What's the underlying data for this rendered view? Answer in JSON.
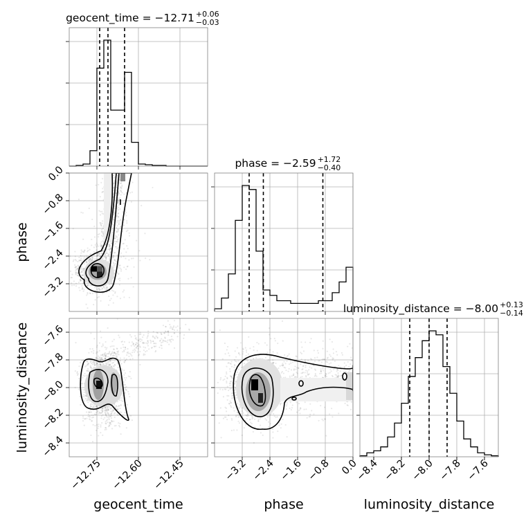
{
  "chart_data": [
    {
      "type": "histogram",
      "panel": "marginal",
      "variable": "geocent_time",
      "title_main": "geocent_time = −12.71",
      "title_sup": "+0.06",
      "title_sub": "−0.03",
      "xlim": [
        -12.85,
        -12.35
      ],
      "quantiles": [
        -12.74,
        -12.71,
        -12.65
      ],
      "bins_x": [
        -12.85,
        -12.825,
        -12.8,
        -12.775,
        -12.75,
        -12.725,
        -12.7,
        -12.675,
        -12.65,
        -12.625,
        -12.6,
        -12.575,
        -12.55,
        -12.525,
        -12.5,
        -12.475,
        -12.45,
        -12.425,
        -12.4,
        -12.375,
        -12.35
      ],
      "counts": [
        0,
        1,
        3,
        22,
        140,
        180,
        80,
        80,
        134,
        34,
        3,
        2,
        1,
        1,
        0,
        0,
        0,
        0,
        0,
        0
      ],
      "ymax": 180,
      "grid": true
    },
    {
      "type": "histogram",
      "panel": "marginal",
      "variable": "phase",
      "title_main": "phase = −2.59",
      "title_sup": "+1.72",
      "title_sub": "−0.40",
      "xlim": [
        -4.0,
        0.0
      ],
      "quantiles": [
        -3.0,
        -2.59,
        -0.87
      ],
      "bins_x": [
        -4.0,
        -3.8,
        -3.6,
        -3.4,
        -3.2,
        -3.0,
        -2.8,
        -2.6,
        -2.4,
        -2.2,
        -2.0,
        -1.8,
        -1.6,
        -1.4,
        -1.2,
        -1.0,
        -0.8,
        -0.6,
        -0.4,
        -0.2,
        0.0
      ],
      "counts": [
        2,
        10,
        28,
        68,
        94,
        91,
        45,
        16,
        12,
        8,
        8,
        6,
        6,
        6,
        6,
        8,
        8,
        14,
        22,
        33
      ],
      "ymax": 94,
      "grid": true
    },
    {
      "type": "histogram",
      "panel": "marginal",
      "variable": "luminosity_distance",
      "title_main": "luminosity_distance = −8.00",
      "title_sup": "+0.13",
      "title_sub": "−0.14",
      "xlim": [
        -8.5,
        -7.5
      ],
      "quantiles": [
        -8.14,
        -8.0,
        -7.87
      ],
      "bins_x": [
        -8.5,
        -8.45,
        -8.4,
        -8.35,
        -8.3,
        -8.25,
        -8.2,
        -8.15,
        -8.1,
        -8.05,
        -8.0,
        -7.95,
        -7.9,
        -7.85,
        -7.8,
        -7.75,
        -7.7,
        -7.65,
        -7.6,
        -7.55,
        -7.5
      ],
      "counts": [
        1,
        4,
        6,
        10,
        20,
        34,
        54,
        81,
        100,
        117,
        127,
        123,
        91,
        64,
        36,
        18,
        10,
        4,
        2,
        1
      ],
      "ymax": 127,
      "grid": true
    },
    {
      "type": "scatter",
      "panel": "2d",
      "x_variable": "geocent_time",
      "y_variable": "phase",
      "xlim": [
        -12.85,
        -12.35
      ],
      "ylim": [
        -4.0,
        0.0
      ],
      "density_peak": [
        -12.755,
        -2.85
      ],
      "contour_levels": 3,
      "grid": true
    },
    {
      "type": "scatter",
      "panel": "2d",
      "x_variable": "geocent_time",
      "y_variable": "luminosity_distance",
      "xlim": [
        -12.85,
        -12.35
      ],
      "ylim": [
        -8.5,
        -7.5
      ],
      "density_peak": [
        -12.745,
        -7.98
      ],
      "contour_levels": 3,
      "grid": true
    },
    {
      "type": "scatter",
      "panel": "2d",
      "x_variable": "phase",
      "y_variable": "luminosity_distance",
      "xlim": [
        -4.0,
        0.0
      ],
      "ylim": [
        -8.5,
        -7.5
      ],
      "density_peak": [
        -2.9,
        -8.0
      ],
      "contour_levels": 3,
      "grid": true
    }
  ],
  "axes": {
    "geocent_time": {
      "label": "geocent_time",
      "ticks": [
        -12.75,
        -12.6,
        -12.45
      ],
      "tick_labels": [
        "−12.75",
        "−12.60",
        "−12.45"
      ]
    },
    "phase": {
      "label": "phase",
      "ticks": [
        -3.2,
        -2.4,
        -1.6,
        -0.8,
        0.0
      ],
      "tick_labels": [
        "−3.2",
        "−2.4",
        "−1.6",
        "−0.8",
        "0.0"
      ]
    },
    "luminosity_distance": {
      "label": "luminosity_distance",
      "ticks": [
        -8.4,
        -8.2,
        -8.0,
        -7.8,
        -7.6
      ],
      "tick_labels": [
        "−8.4",
        "−8.2",
        "−8.0",
        "−7.8",
        "−7.6"
      ]
    }
  }
}
